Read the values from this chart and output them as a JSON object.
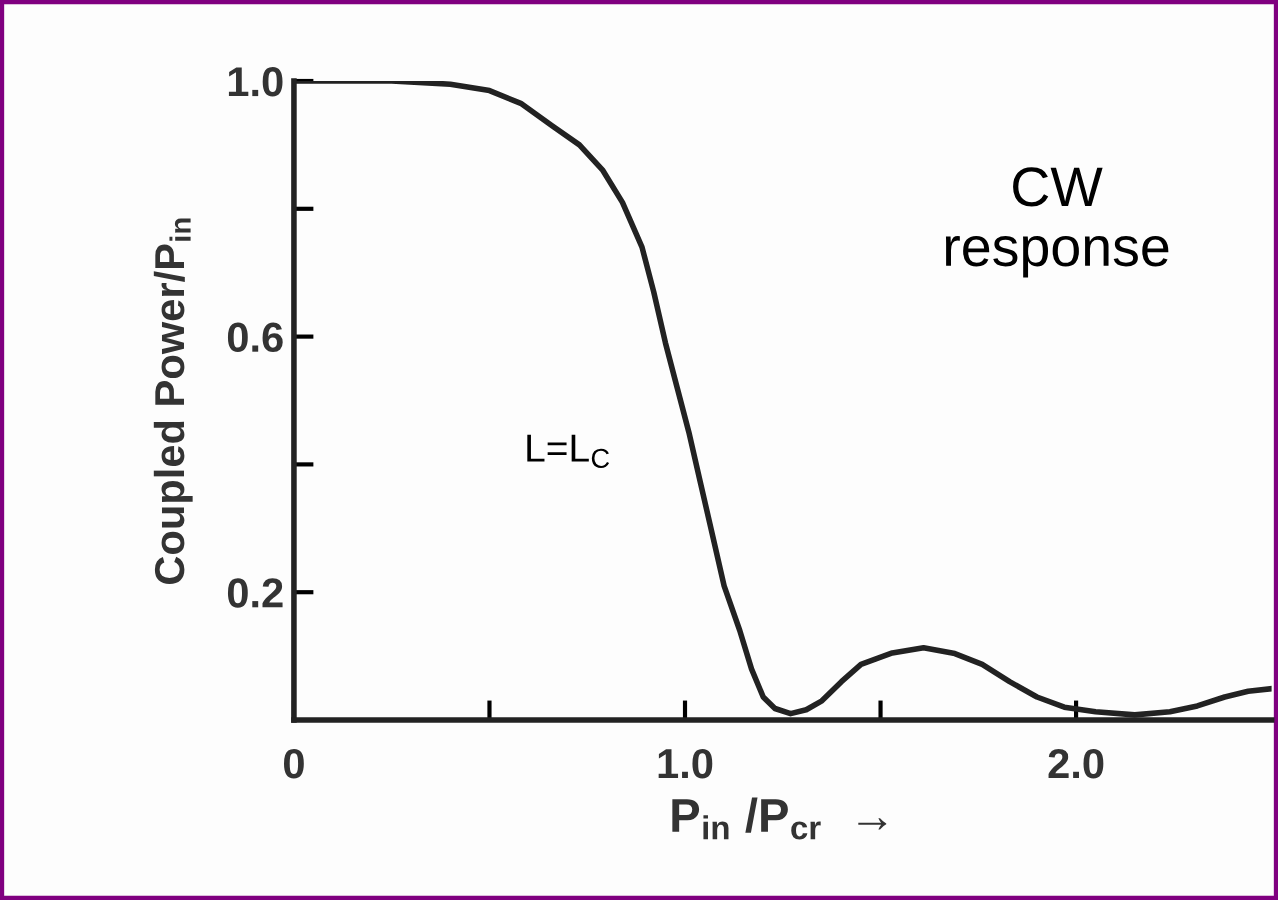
{
  "chart_data": {
    "type": "line",
    "xlabel": "P$_{in}$ /P$_{cr}$  →",
    "ylabel": "Coupled Power/P$_{in}$",
    "x": [
      0,
      0.1,
      0.25,
      0.4,
      0.5,
      0.58,
      0.66,
      0.73,
      0.79,
      0.84,
      0.89,
      0.92,
      0.95,
      0.98,
      1.01,
      1.04,
      1.07,
      1.1,
      1.14,
      1.17,
      1.2,
      1.23,
      1.27,
      1.31,
      1.35,
      1.4,
      1.45,
      1.53,
      1.61,
      1.69,
      1.76,
      1.83,
      1.9,
      1.97,
      2.05,
      2.15,
      2.24,
      2.31,
      2.38,
      2.44,
      2.5
    ],
    "series": [
      {
        "color": "#222222",
        "values": [
          1.0,
          1.0,
          1.0,
          0.995,
          0.985,
          0.965,
          0.93,
          0.9,
          0.86,
          0.81,
          0.74,
          0.67,
          0.59,
          0.52,
          0.45,
          0.37,
          0.29,
          0.21,
          0.14,
          0.08,
          0.036,
          0.018,
          0.01,
          0.016,
          0.03,
          0.06,
          0.087,
          0.105,
          0.113,
          0.104,
          0.087,
          0.06,
          0.036,
          0.02,
          0.013,
          0.008,
          0.013,
          0.022,
          0.036,
          0.045,
          0.049
        ]
      }
    ],
    "xlim": [
      0,
      2.5
    ],
    "ylim": [
      0,
      1.0
    ],
    "xticks": [
      0,
      {
        "value": 0.5,
        "label": null
      },
      {
        "value": 1.0,
        "label": "1.0"
      },
      {
        "value": 1.5,
        "label": null
      },
      {
        "value": 2.0,
        "label": "2.0"
      }
    ],
    "yticks": [
      {
        "value": 0.2,
        "label": "0.2"
      },
      {
        "value": 0.4,
        "label": null
      },
      {
        "value": 0.6,
        "label": "0.6"
      },
      {
        "value": 0.8,
        "label": null
      },
      {
        "value": 1.0,
        "label": "1.0"
      }
    ],
    "annotations": [
      "CW\nresponse",
      "L=L$_{C}$"
    ],
    "grid": false,
    "legend": false,
    "marker": "none",
    "line_style": "solid"
  }
}
